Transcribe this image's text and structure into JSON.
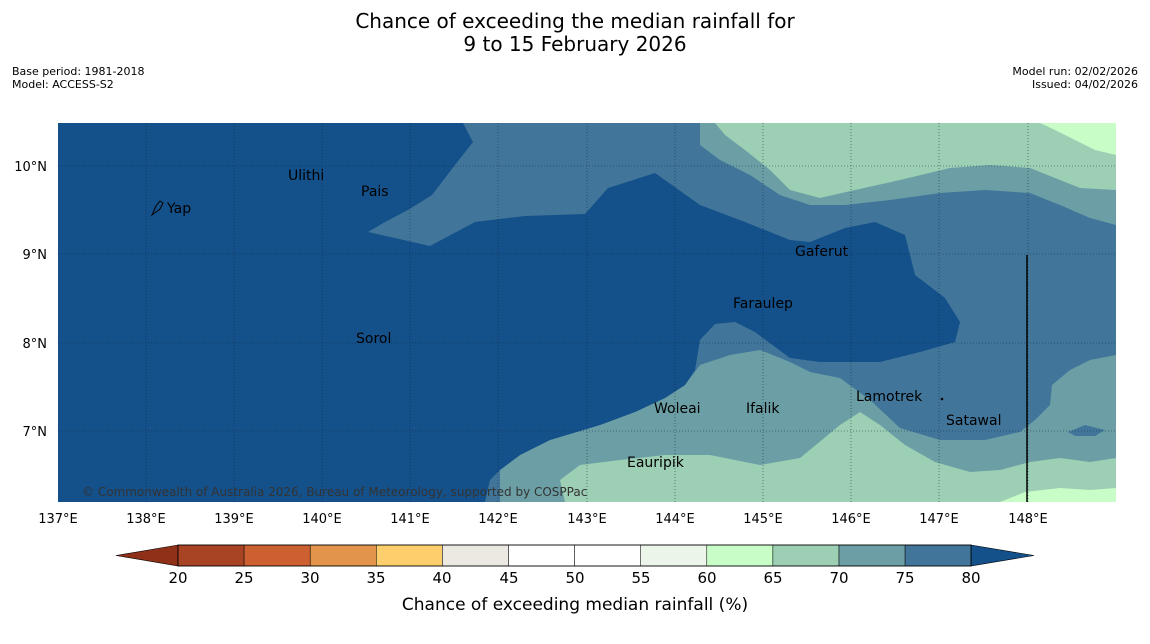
{
  "title": {
    "line1": "Chance of exceeding the median rainfall for",
    "line2": "9 to 15 February 2026"
  },
  "meta": {
    "base_period": "Base period: 1981-2018",
    "model": "Model: ACCESS-S2",
    "model_run": "Model run: 02/02/2026",
    "issued": "Issued: 04/02/2026"
  },
  "map": {
    "lon_labels": [
      "137°E",
      "138°E",
      "139°E",
      "140°E",
      "141°E",
      "142°E",
      "143°E",
      "144°E",
      "145°E",
      "146°E",
      "147°E",
      "148°E"
    ],
    "lat_labels": [
      "10°N",
      "9°N",
      "8°N",
      "7°N"
    ],
    "places": [
      {
        "name": "Yap",
        "label": "Yap"
      },
      {
        "name": "Ulithi",
        "label": "Ulithi"
      },
      {
        "name": "Pais",
        "label": "Pais"
      },
      {
        "name": "Gaferut",
        "label": "Gaferut"
      },
      {
        "name": "Faraulep",
        "label": "Faraulep"
      },
      {
        "name": "Sorol",
        "label": "Sorol"
      },
      {
        "name": "Woleai",
        "label": "Woleai"
      },
      {
        "name": "Ifalik",
        "label": "Ifalik"
      },
      {
        "name": "Lamotrek",
        "label": "Lamotrek"
      },
      {
        "name": "Satawal",
        "label": "Satawal"
      },
      {
        "name": "Eauripik",
        "label": "Eauripik"
      }
    ],
    "copyright": "© Commonwealth of Australia 2026, Bureau of Meteorology, supported by COSPPac"
  },
  "legend": {
    "title": "Chance of exceeding median rainfall (%)",
    "ticks": [
      "20",
      "25",
      "30",
      "35",
      "40",
      "45",
      "50",
      "55",
      "60",
      "65",
      "70",
      "75",
      "80"
    ],
    "colors": [
      "#a84423",
      "#cd6030",
      "#e2944a",
      "#fdcf6c",
      "#ece9e3",
      "#ffffff",
      "#ffffff",
      "#ebf5ea",
      "#c8fdc7",
      "#9ccfb4",
      "#6b9fa5",
      "#41769a"
    ],
    "under_color": "#8f3018",
    "over_color": "#14508a"
  },
  "field_colors": {
    "c75_80": "#41769a",
    "c80plus": "#14508a",
    "c70_75": "#6b9fa5",
    "c65_70": "#9ccfb4",
    "c60_65": "#c8fdc7"
  }
}
